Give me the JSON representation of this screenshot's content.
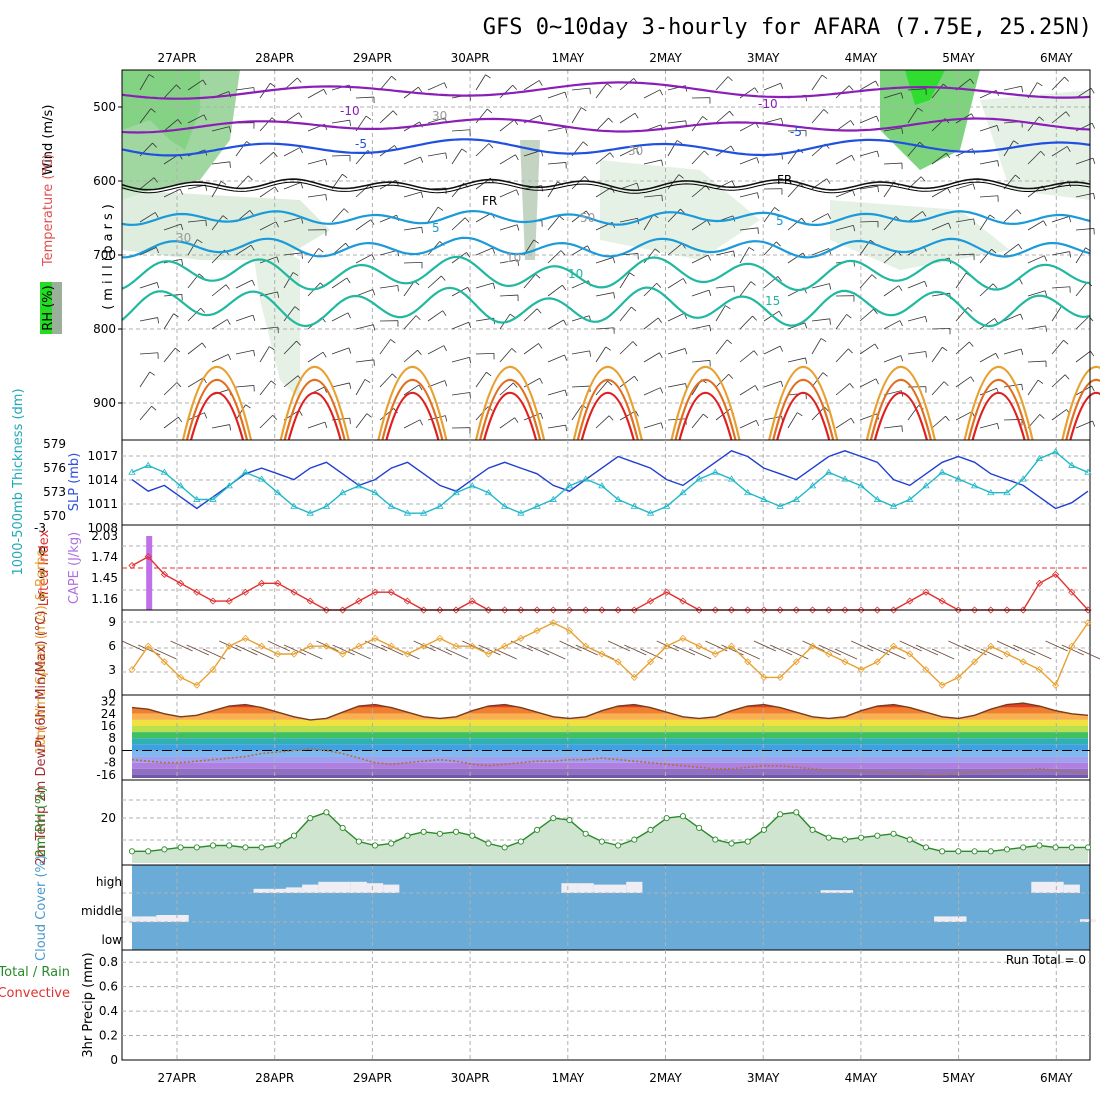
{
  "title": "GFS 0~10day 3-hourly for AFARA (7.75E, 25.25N)",
  "chart_data": [
    {
      "panel": "upper-air cross section",
      "type": "contour",
      "x_categories": [
        "27APR",
        "28APR",
        "29APR",
        "30APR",
        "1MAY",
        "2MAY",
        "3MAY",
        "4MAY",
        "5MAY",
        "6MAY"
      ],
      "ylabel": "(millibars)",
      "y_ticks": [
        "500",
        "600",
        "700",
        "800",
        "900"
      ],
      "ylim": [
        950,
        450
      ],
      "legend": {
        "rh": "RH (%)",
        "temperature": "Temperature (°C)",
        "wind": "Wind (m/s)"
      },
      "contour_labels": [
        "-10",
        "-10",
        "-5",
        "-5",
        "FR",
        "FR",
        "5",
        "5",
        "10",
        "15",
        "30",
        "30",
        "30",
        "50",
        "10"
      ]
    },
    {
      "panel": "thickness and sea-level pressure",
      "type": "line",
      "ylabel_left": "1000-500mb Thickness (dm)",
      "ylabel_right": "SLP (mb)",
      "left_ticks": [
        "579",
        "576",
        "573",
        "570"
      ],
      "right_ticks": [
        "1017",
        "1014",
        "1011",
        "1008"
      ],
      "series": [
        {
          "name": "SLP (mb)",
          "color": "#1f3fd0",
          "values": [
            1013,
            1011,
            1012,
            1010,
            1008,
            1010,
            1012,
            1014,
            1015,
            1014,
            1013,
            1015,
            1016,
            1014,
            1012,
            1013,
            1015,
            1016,
            1014,
            1012,
            1011,
            1013,
            1015,
            1016,
            1015,
            1014,
            1012,
            1011,
            1013,
            1015,
            1017,
            1016,
            1015,
            1013,
            1012,
            1014,
            1016,
            1018,
            1017,
            1015,
            1014,
            1013,
            1015,
            1017,
            1018,
            1017,
            1016,
            1013,
            1012,
            1014,
            1016,
            1017,
            1016,
            1014,
            1013,
            1012,
            1010,
            1008,
            1009,
            1011
          ]
        },
        {
          "name": "1000-500mb Thickness (dm)",
          "color": "#20b8c8",
          "values": [
            576,
            577,
            576,
            574,
            572,
            572,
            574,
            576,
            575,
            573,
            571,
            570,
            571,
            573,
            574,
            573,
            571,
            570,
            570,
            571,
            573,
            574,
            573,
            571,
            570,
            571,
            572,
            574,
            575,
            574,
            572,
            571,
            570,
            571,
            573,
            575,
            576,
            575,
            573,
            572,
            571,
            572,
            574,
            576,
            575,
            574,
            572,
            571,
            572,
            574,
            576,
            575,
            574,
            573,
            573,
            575,
            578,
            579,
            577,
            576
          ]
        }
      ]
    },
    {
      "panel": "stability",
      "type": "line",
      "ylabel_left": "Lifted Index",
      "ylabel_right": "CAPE (J/kg)",
      "left_ticks": [
        "-3",
        "0",
        "3",
        "6"
      ],
      "right_ticks": [
        "2.03",
        "1.74",
        "1.45",
        "1.16"
      ],
      "series": [
        {
          "name": "Lifted Index",
          "color": "#e03030",
          "values": [
            1,
            0,
            2,
            3,
            4,
            5,
            5,
            4,
            3,
            3,
            4,
            5,
            6,
            6,
            5,
            4,
            4,
            5,
            6,
            6,
            6,
            5,
            6,
            6,
            6,
            6,
            6,
            6,
            6,
            6,
            6,
            6,
            5,
            4,
            5,
            6,
            6,
            6,
            6,
            6,
            6,
            6,
            6,
            6,
            6,
            6,
            6,
            6,
            5,
            4,
            5,
            6,
            6,
            6,
            6,
            6,
            3,
            2,
            4,
            6
          ]
        },
        {
          "name": "CAPE (J/kg)",
          "color": "#c070e8",
          "values": [
            0,
            2.03,
            0,
            0,
            0,
            0,
            0,
            0,
            0,
            0,
            0,
            0,
            0,
            0,
            0,
            0,
            0,
            0,
            0,
            0,
            0,
            0,
            0,
            0,
            0,
            0,
            0,
            0,
            0,
            0,
            0,
            0,
            0,
            0,
            0,
            0,
            0,
            0,
            0,
            0,
            0,
            0,
            0,
            0,
            0,
            0,
            0,
            0,
            0,
            0,
            0,
            0,
            0,
            0,
            0,
            0,
            0,
            0,
            0,
            0
          ]
        }
      ]
    },
    {
      "panel": "10m wind",
      "type": "line",
      "ylabel": "10m Wind Speed (m/s) & Barbs",
      "y_ticks": [
        "9",
        "6",
        "3",
        "0"
      ],
      "ylim": [
        0,
        10
      ],
      "series": [
        {
          "name": "Speed",
          "color": "#e8a030",
          "values": [
            3,
            6,
            4,
            2,
            1,
            3,
            6,
            7,
            6,
            5,
            5,
            6,
            6,
            5,
            6,
            7,
            6,
            5,
            6,
            7,
            6,
            6,
            5,
            6,
            7,
            8,
            9,
            8,
            6,
            5,
            4,
            2,
            4,
            6,
            7,
            6,
            5,
            6,
            4,
            2,
            2,
            4,
            6,
            5,
            4,
            3,
            4,
            6,
            5,
            3,
            1,
            2,
            4,
            6,
            5,
            4,
            3,
            1,
            6,
            9
          ]
        }
      ]
    },
    {
      "panel": "2m temperature",
      "type": "area",
      "ylabel": "2m Temp 2m DewPt (6hr Min/Max) (°C)",
      "y_ticks": [
        "32",
        "24",
        "16",
        "8",
        "0",
        "-8",
        "-16"
      ],
      "ylim": [
        -18,
        33
      ],
      "series": [
        {
          "name": "2m Temp",
          "color": "#7a3b1a",
          "values": [
            28,
            27,
            24,
            22,
            23,
            26,
            29,
            30,
            28,
            25,
            22,
            20,
            21,
            25,
            29,
            30,
            28,
            25,
            22,
            21,
            22,
            26,
            29,
            30,
            28,
            25,
            22,
            21,
            22,
            26,
            29,
            30,
            28,
            25,
            22,
            21,
            22,
            26,
            29,
            30,
            28,
            25,
            22,
            21,
            22,
            26,
            29,
            30,
            28,
            25,
            22,
            21,
            23,
            27,
            30,
            31,
            29,
            26,
            24,
            23
          ]
        },
        {
          "name": "2m DewPt",
          "color": "#b07040",
          "values": [
            -6,
            -7,
            -8,
            -8,
            -7,
            -6,
            -5,
            -4,
            -2,
            -1,
            0,
            1,
            0,
            -2,
            -5,
            -8,
            -9,
            -8,
            -7,
            -6,
            -7,
            -9,
            -10,
            -9,
            -8,
            -7,
            -7,
            -6,
            -6,
            -5,
            -6,
            -7,
            -8,
            -9,
            -10,
            -11,
            -12,
            -12,
            -11,
            -10,
            -10,
            -11,
            -12,
            -13,
            -13,
            -14,
            -14,
            -15,
            -15,
            -16,
            -16,
            -15,
            -14,
            -14,
            -13,
            -13,
            -12,
            -13,
            -14,
            -15
          ]
        }
      ]
    },
    {
      "panel": "2m relative humidity",
      "type": "area",
      "ylabel": "2m RH (%)",
      "y_ticks": [
        "20"
      ],
      "ylim": [
        0,
        40
      ],
      "series": [
        {
          "name": "2m RH",
          "color": "#2a8a2a",
          "values": [
            6,
            6,
            7,
            8,
            8,
            9,
            9,
            8,
            8,
            9,
            14,
            23,
            26,
            18,
            11,
            9,
            10,
            14,
            16,
            15,
            16,
            14,
            10,
            8,
            11,
            17,
            23,
            22,
            15,
            11,
            9,
            12,
            17,
            23,
            24,
            18,
            12,
            10,
            11,
            17,
            25,
            26,
            17,
            13,
            12,
            13,
            14,
            15,
            12,
            8,
            6,
            6,
            6,
            6,
            7,
            8,
            9,
            8,
            8,
            8
          ]
        }
      ]
    },
    {
      "panel": "cloud cover",
      "type": "bar",
      "ylabel": "Cloud Cover (%)",
      "y_ticks": [
        "high",
        "middle",
        "low"
      ],
      "series": [
        {
          "name": "high",
          "color": "#f0eef5",
          "values": [
            0,
            0,
            0,
            0,
            0,
            0,
            0,
            0,
            15,
            15,
            20,
            30,
            40,
            40,
            40,
            35,
            30,
            0,
            0,
            0,
            0,
            0,
            0,
            0,
            0,
            0,
            0,
            35,
            35,
            30,
            30,
            40,
            0,
            0,
            0,
            0,
            0,
            0,
            0,
            0,
            0,
            0,
            0,
            10,
            10,
            0,
            0,
            0,
            0,
            0,
            0,
            0,
            0,
            0,
            0,
            0,
            40,
            40,
            30,
            0
          ]
        },
        {
          "name": "middle",
          "color": "#f0eef5",
          "values": [
            20,
            20,
            25,
            25,
            0,
            0,
            0,
            0,
            0,
            0,
            0,
            0,
            0,
            0,
            0,
            0,
            0,
            0,
            0,
            0,
            0,
            0,
            0,
            0,
            0,
            0,
            0,
            0,
            0,
            0,
            0,
            0,
            0,
            0,
            0,
            0,
            0,
            0,
            0,
            0,
            0,
            0,
            0,
            0,
            0,
            0,
            0,
            0,
            0,
            0,
            20,
            20,
            0,
            0,
            0,
            0,
            0,
            0,
            0,
            10
          ]
        },
        {
          "name": "low",
          "color": "#f0eef5",
          "values": [
            0,
            0,
            0,
            0,
            0,
            0,
            0,
            0,
            0,
            0,
            0,
            0,
            0,
            0,
            0,
            0,
            0,
            0,
            0,
            0,
            0,
            0,
            0,
            0,
            0,
            0,
            0,
            0,
            0,
            0,
            0,
            0,
            0,
            0,
            0,
            0,
            0,
            0,
            0,
            0,
            0,
            0,
            0,
            0,
            0,
            0,
            0,
            0,
            0,
            0,
            0,
            0,
            0,
            0,
            0,
            0,
            0,
            0,
            0,
            0
          ]
        }
      ]
    },
    {
      "panel": "precipitation",
      "type": "bar",
      "ylabel": "3hr Precip (mm)",
      "legend": [
        "Total / Rain",
        "Convective"
      ],
      "y_ticks": [
        "0.8",
        "0.6",
        "0.4",
        "0.2",
        "0"
      ],
      "ylim": [
        0,
        0.9
      ],
      "annotation": "Run Total = 0",
      "series": [
        {
          "name": "Total / Rain",
          "color": "#2a8a2a",
          "values": [
            0,
            0,
            0,
            0,
            0,
            0,
            0,
            0,
            0,
            0
          ]
        },
        {
          "name": "Convective",
          "color": "#e03030",
          "values": [
            0,
            0,
            0,
            0,
            0,
            0,
            0,
            0,
            0,
            0
          ]
        }
      ]
    }
  ]
}
